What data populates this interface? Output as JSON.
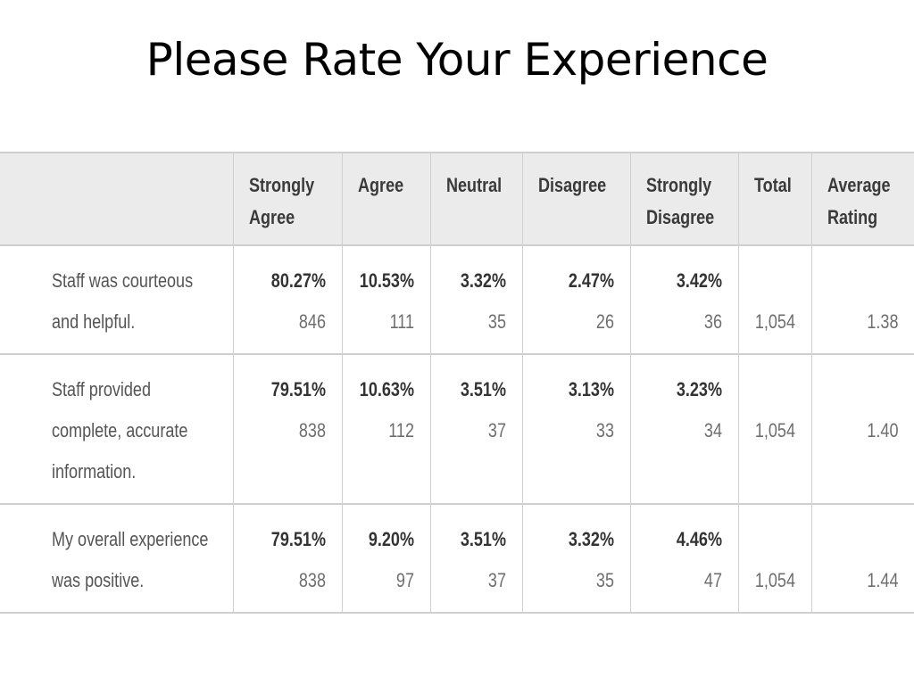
{
  "title": "Please Rate Your Experience",
  "table": {
    "headers": [
      "",
      "Strongly Agree",
      "Agree",
      "Neutral",
      "Disagree",
      "Strongly Disagree",
      "Total",
      "Average Rating"
    ],
    "header_lines": [
      [
        ""
      ],
      [
        "Strongly",
        "Agree"
      ],
      [
        "Agree"
      ],
      [
        "Neutral"
      ],
      [
        "Disagree"
      ],
      [
        "Strongly",
        "Disagree"
      ],
      [
        "Total"
      ],
      [
        "Average",
        "Rating"
      ]
    ],
    "rows": [
      {
        "question_lines": [
          "Staff was courteous",
          "and helpful."
        ],
        "cells": [
          {
            "pct": "80.27%",
            "count": "846"
          },
          {
            "pct": "10.53%",
            "count": "111"
          },
          {
            "pct": "3.32%",
            "count": "35"
          },
          {
            "pct": "2.47%",
            "count": "26"
          },
          {
            "pct": "3.42%",
            "count": "36"
          }
        ],
        "total": "1,054",
        "average": "1.38"
      },
      {
        "question_lines": [
          "Staff provided",
          "complete, accurate",
          "information."
        ],
        "cells": [
          {
            "pct": "79.51%",
            "count": "838"
          },
          {
            "pct": "10.63%",
            "count": "112"
          },
          {
            "pct": "3.51%",
            "count": "37"
          },
          {
            "pct": "3.13%",
            "count": "33"
          },
          {
            "pct": "3.23%",
            "count": "34"
          }
        ],
        "total": "1,054",
        "average": "1.40"
      },
      {
        "question_lines": [
          "My overall experience",
          "was positive."
        ],
        "cells": [
          {
            "pct": "79.51%",
            "count": "838"
          },
          {
            "pct": "9.20%",
            "count": "97"
          },
          {
            "pct": "3.51%",
            "count": "37"
          },
          {
            "pct": "3.32%",
            "count": "35"
          },
          {
            "pct": "4.46%",
            "count": "47"
          }
        ],
        "total": "1,054",
        "average": "1.44"
      }
    ]
  }
}
